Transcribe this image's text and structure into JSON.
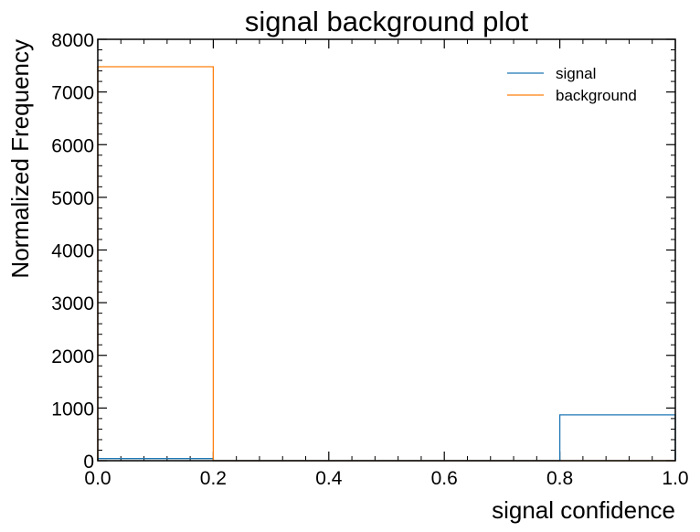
{
  "chart_data": {
    "type": "histogram",
    "title": "signal background plot",
    "xlabel": "signal confidence",
    "ylabel": "Normalized Frequency",
    "xlim": [
      0.0,
      1.0
    ],
    "ylim": [
      0,
      8000
    ],
    "bin_edges": [
      0.0,
      0.2,
      0.4,
      0.6,
      0.8,
      1.0
    ],
    "x_ticks": [
      0.0,
      0.2,
      0.4,
      0.6,
      0.8,
      1.0
    ],
    "x_tick_labels": [
      "0.0",
      "0.2",
      "0.4",
      "0.6",
      "0.8",
      "1.0"
    ],
    "y_ticks": [
      0,
      1000,
      2000,
      3000,
      4000,
      5000,
      6000,
      7000,
      8000
    ],
    "y_tick_labels": [
      "0",
      "1000",
      "2000",
      "3000",
      "4000",
      "5000",
      "6000",
      "7000",
      "8000"
    ],
    "grid": false,
    "legend_position": "upper right",
    "series": [
      {
        "name": "signal",
        "color": "#1f77b4",
        "values": [
          40,
          0,
          0,
          0,
          870
        ]
      },
      {
        "name": "background",
        "color": "#ff7f0e",
        "values": [
          7480,
          0,
          0,
          0,
          0
        ]
      }
    ]
  }
}
